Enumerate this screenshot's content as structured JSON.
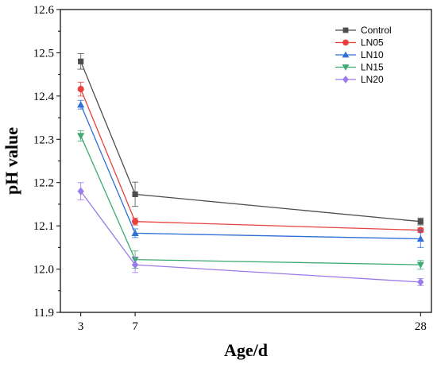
{
  "chart_data": {
    "type": "line",
    "title": "",
    "xlabel": "Age/d",
    "ylabel": "pH value",
    "x": [
      3,
      7,
      28
    ],
    "xticks": [
      "3",
      "7",
      "28"
    ],
    "xlim": [
      1.5,
      28.8
    ],
    "ylim": [
      11.9,
      12.6
    ],
    "yticks": [
      "11.9",
      "12.0",
      "12.1",
      "12.2",
      "12.3",
      "12.4",
      "12.5",
      "12.6"
    ],
    "grid": false,
    "legend_position": "top-right",
    "series": [
      {
        "name": "Control",
        "color": "#4d4d4d",
        "marker": "square",
        "values": [
          12.48,
          12.173,
          12.11
        ],
        "errors": [
          0.018,
          0.028,
          0.008
        ]
      },
      {
        "name": "LN05",
        "color": "#e8423f",
        "marker": "circle",
        "values": [
          12.416,
          12.11,
          12.09
        ],
        "errors": [
          0.016,
          0.008,
          0.005
        ]
      },
      {
        "name": "LN10",
        "color": "#2f6fd6",
        "marker": "triangle-up",
        "values": [
          12.38,
          12.083,
          12.07
        ],
        "errors": [
          0.01,
          0.01,
          0.02
        ]
      },
      {
        "name": "LN15",
        "color": "#3daa72",
        "marker": "triangle-down",
        "values": [
          12.308,
          12.022,
          12.01
        ],
        "errors": [
          0.012,
          0.02,
          0.01
        ]
      },
      {
        "name": "LN20",
        "color": "#9a7be8",
        "marker": "diamond",
        "values": [
          12.18,
          12.01,
          11.97
        ],
        "errors": [
          0.02,
          0.018,
          0.008
        ]
      }
    ]
  }
}
